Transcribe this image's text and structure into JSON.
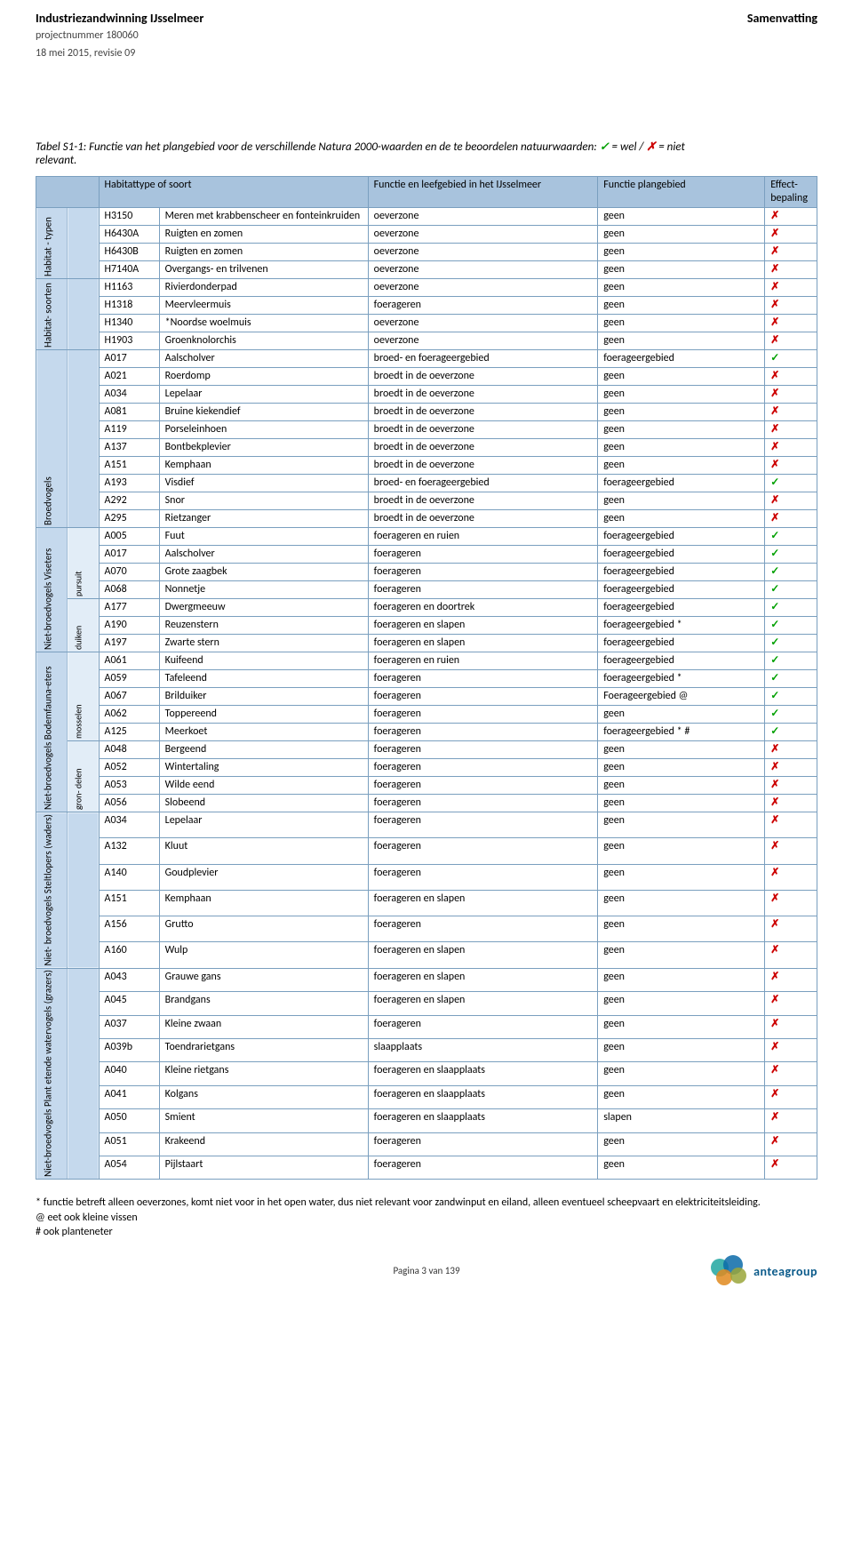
{
  "header": {
    "title_left": "Industriezandwinning IJsselmeer",
    "title_right": "Samenvatting",
    "sub1": "projectnummer 180060",
    "sub2": "18 mei 2015, revisie 09"
  },
  "caption": {
    "prefix": "Tabel S1-1: Functie van het plangebied voor de verschillende Natura 2000-waarden en de te beoordelen natuurwaarden: ",
    "wel": " = wel / ",
    "niet": " = niet relevant."
  },
  "columns": {
    "col1": "Habitattype of soort",
    "col2": "Functie en leefgebied in het IJsselmeer",
    "col3": "Functie plangebied",
    "col4": "Effect-bepaling"
  },
  "groups": [
    {
      "label": "Habitat - typen",
      "sub": null,
      "rows": [
        {
          "code": "H3150",
          "name": "Meren met krabbenscheer en fonteinkruiden",
          "f": "oeverzone",
          "p": "geen",
          "e": "x"
        },
        {
          "code": "H6430A",
          "name": "Ruigten en zomen",
          "f": "oeverzone",
          "p": "geen",
          "e": "x"
        },
        {
          "code": "H6430B",
          "name": "Ruigten en zomen",
          "f": "oeverzone",
          "p": "geen",
          "e": "x"
        },
        {
          "code": "H7140A",
          "name": "Overgangs- en trilvenen",
          "f": "oeverzone",
          "p": "geen",
          "e": "x"
        }
      ]
    },
    {
      "label": "Habitat- soorten",
      "sub": null,
      "rows": [
        {
          "code": "H1163",
          "name": "Rivierdonderpad",
          "f": "oeverzone",
          "p": "geen",
          "e": "x"
        },
        {
          "code": "H1318",
          "name": "Meervleermuis",
          "f": "foerageren",
          "p": "geen",
          "e": "x"
        },
        {
          "code": "H1340",
          "name": "*Noordse woelmuis",
          "f": "oeverzone",
          "p": "geen",
          "e": "x"
        },
        {
          "code": "H1903",
          "name": "Groenknolorchis",
          "f": "oeverzone",
          "p": "geen",
          "e": "x"
        }
      ]
    },
    {
      "label": "Broedvogels",
      "sub": null,
      "rows": [
        {
          "code": "A017",
          "name": "Aalscholver",
          "f": "broed- en foerageergebied",
          "p": "foerageergebied",
          "e": "v"
        },
        {
          "code": "A021",
          "name": "Roerdomp",
          "f": "broedt in de oeverzone",
          "p": "geen",
          "e": "x"
        },
        {
          "code": "A034",
          "name": "Lepelaar",
          "f": "broedt in de oeverzone",
          "p": "geen",
          "e": "x"
        },
        {
          "code": "A081",
          "name": "Bruine kiekendief",
          "f": "broedt in de oeverzone",
          "p": "geen",
          "e": "x"
        },
        {
          "code": "A119",
          "name": "Porseleinhoen",
          "f": "broedt in de oeverzone",
          "p": "geen",
          "e": "x"
        },
        {
          "code": "A137",
          "name": "Bontbekplevier",
          "f": "broedt in de oeverzone",
          "p": "geen",
          "e": "x"
        },
        {
          "code": "A151",
          "name": "Kemphaan",
          "f": "broedt in de oeverzone",
          "p": "geen",
          "e": "x"
        },
        {
          "code": "A193",
          "name": "Visdief",
          "f": "broed- en foerageergebied",
          "p": "foerageergebied",
          "e": "v"
        },
        {
          "code": "A292",
          "name": "Snor",
          "f": "broedt in de oeverzone",
          "p": "geen",
          "e": "x"
        },
        {
          "code": "A295",
          "name": "Rietzanger",
          "f": "broedt in de oeverzone",
          "p": "geen",
          "e": "x"
        }
      ]
    },
    {
      "label": "Niet-broedvogels Viseters",
      "sub": "pursuit",
      "rows": [
        {
          "code": "A005",
          "name": "Fuut",
          "f": "foerageren en ruien",
          "p": "foerageergebied",
          "e": "v"
        },
        {
          "code": "A017",
          "name": "Aalscholver",
          "f": "foerageren",
          "p": "foerageergebied",
          "e": "v"
        },
        {
          "code": "A070",
          "name": "Grote zaagbek",
          "f": "foerageren",
          "p": "foerageergebied",
          "e": "v"
        },
        {
          "code": "A068",
          "name": "Nonnetje",
          "f": "foerageren",
          "p": "foerageergebied",
          "e": "v"
        }
      ]
    },
    {
      "label": null,
      "sub": "duiken",
      "rows": [
        {
          "code": "A177",
          "name": "Dwergmeeuw",
          "f": "foerageren en doortrek",
          "p": "foerageergebied",
          "e": "v"
        },
        {
          "code": "A190",
          "name": "Reuzenstern",
          "f": "foerageren en slapen",
          "p": "foerageergebied *",
          "e": "v"
        },
        {
          "code": "A197",
          "name": "Zwarte stern",
          "f": "foerageren en slapen",
          "p": "foerageergebied",
          "e": "v"
        }
      ]
    },
    {
      "label": "Niet-broedvogels Bodemfauna-eters",
      "sub": "mosselen",
      "rows": [
        {
          "code": "A061",
          "name": "Kuifeend",
          "f": "foerageren en ruien",
          "p": "foerageergebied",
          "e": "v"
        },
        {
          "code": "A059",
          "name": "Tafeleend",
          "f": "foerageren",
          "p": "foerageergebied *",
          "e": "v"
        },
        {
          "code": "A067",
          "name": "Brilduiker",
          "f": "foerageren",
          "p": "Foerageergebied @",
          "e": "v"
        },
        {
          "code": "A062",
          "name": "Toppereend",
          "f": "foerageren",
          "p": "geen",
          "e": "v"
        },
        {
          "code": "A125",
          "name": "Meerkoet",
          "f": "foerageren",
          "p": "foerageergebied * #",
          "e": "v"
        }
      ]
    },
    {
      "label": null,
      "sub": "gron- delen",
      "rows": [
        {
          "code": "A048",
          "name": "Bergeend",
          "f": "foerageren",
          "p": "geen",
          "e": "x"
        },
        {
          "code": "A052",
          "name": "Wintertaling",
          "f": "foerageren",
          "p": "geen",
          "e": "x"
        },
        {
          "code": "A053",
          "name": "Wilde eend",
          "f": "foerageren",
          "p": "geen",
          "e": "x"
        },
        {
          "code": "A056",
          "name": "Slobeend",
          "f": "foerageren",
          "p": "geen",
          "e": "x"
        }
      ]
    },
    {
      "label": "Niet- broedvogels Steltlopers (waders)",
      "sub": null,
      "rows": [
        {
          "code": "A034",
          "name": "Lepelaar",
          "f": "foerageren",
          "p": "geen",
          "e": "x"
        },
        {
          "code": "A132",
          "name": "Kluut",
          "f": "foerageren",
          "p": "geen",
          "e": "x"
        },
        {
          "code": "A140",
          "name": "Goudplevier",
          "f": "foerageren",
          "p": "geen",
          "e": "x"
        },
        {
          "code": "A151",
          "name": "Kemphaan",
          "f": "foerageren en slapen",
          "p": "geen",
          "e": "x"
        },
        {
          "code": "A156",
          "name": "Grutto",
          "f": "foerageren",
          "p": "geen",
          "e": "x"
        },
        {
          "code": "A160",
          "name": "Wulp",
          "f": "foerageren en slapen",
          "p": "geen",
          "e": "x"
        }
      ]
    },
    {
      "label": "Niet-broedvogels Plant etende watervogels (grazers)",
      "sub": null,
      "rows": [
        {
          "code": "A043",
          "name": "Grauwe gans",
          "f": "foerageren en slapen",
          "p": "geen",
          "e": "x"
        },
        {
          "code": "A045",
          "name": "Brandgans",
          "f": "foerageren en slapen",
          "p": "geen",
          "e": "x"
        },
        {
          "code": "A037",
          "name": "Kleine zwaan",
          "f": "foerageren",
          "p": "geen",
          "e": "x"
        },
        {
          "code": "A039b",
          "name": "Toendrarietgans",
          "f": "slaapplaats",
          "p": "geen",
          "e": "x"
        },
        {
          "code": "A040",
          "name": "Kleine rietgans",
          "f": "foerageren en slaapplaats",
          "p": "geen",
          "e": "x"
        },
        {
          "code": "A041",
          "name": "Kolgans",
          "f": "foerageren en slaapplaats",
          "p": "geen",
          "e": "x"
        },
        {
          "code": "A050",
          "name": "Smient",
          "f": "foerageren en slaapplaats",
          "p": "slapen",
          "e": "x"
        },
        {
          "code": "A051",
          "name": "Krakeend",
          "f": "foerageren",
          "p": "geen",
          "e": "x"
        },
        {
          "code": "A054",
          "name": "Pijlstaart",
          "f": "foerageren",
          "p": "geen",
          "e": "x"
        }
      ]
    }
  ],
  "footnotes": {
    "l1": "* functie betreft alleen oeverzones, komt niet voor in het open water, dus niet relevant voor zandwinput en eiland, alleen eventueel scheepvaart en elektriciteitsleiding.",
    "l2": "@ eet ook kleine vissen",
    "l3": "# ook planteneter"
  },
  "footer": {
    "page": "Pagina 3 van 139",
    "logo_text": "anteagroup"
  },
  "logo_colors": {
    "blue": "#0a6aa8",
    "teal": "#21a6a0",
    "orange": "#e08a1e",
    "olive": "#9aa63a"
  }
}
